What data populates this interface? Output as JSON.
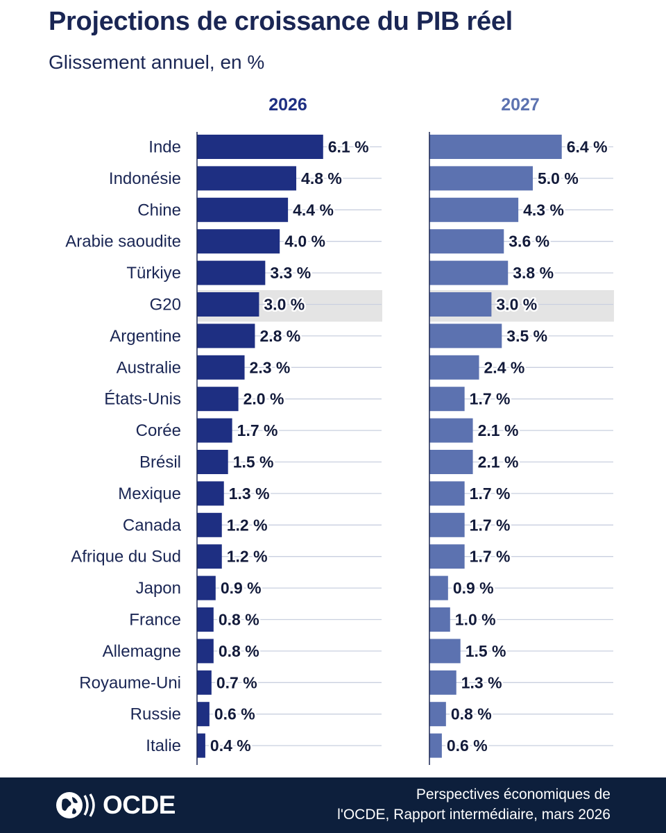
{
  "header": {
    "title": "Projections de croissance du PIB réel",
    "subtitle": "Glissement annuel, en %"
  },
  "colors": {
    "series_2026": "#1e2f82",
    "series_2027": "#5c72b0",
    "highlight_band": "#e4e4e4",
    "footer_bg": "#0d1f3c",
    "title": "#1a2654"
  },
  "chart_data": {
    "type": "bar",
    "orientation": "horizontal",
    "title": "Projections de croissance du PIB réel",
    "subtitle": "Glissement annuel, en %",
    "unit": "%",
    "highlight": "G20",
    "grid": true,
    "categories": [
      "Inde",
      "Indonésie",
      "Chine",
      "Arabie saoudite",
      "Türkiye",
      "G20",
      "Argentine",
      "Australie",
      "États-Unis",
      "Corée",
      "Brésil",
      "Mexique",
      "Canada",
      "Afrique du Sud",
      "Japon",
      "France",
      "Allemagne",
      "Royaume-Uni",
      "Russie",
      "Italie"
    ],
    "series": [
      {
        "name": "2026",
        "values": [
          6.1,
          4.8,
          4.4,
          4.0,
          3.3,
          3.0,
          2.8,
          2.3,
          2.0,
          1.7,
          1.5,
          1.3,
          1.2,
          1.2,
          0.9,
          0.8,
          0.8,
          0.7,
          0.6,
          0.4
        ],
        "labels": [
          "6.1 %",
          "4.8 %",
          "4.4 %",
          "4.0 %",
          "3.3 %",
          "3.0 %",
          "2.8 %",
          "2.3 %",
          "2.0 %",
          "1.7 %",
          "1.5 %",
          "1.3 %",
          "1.2 %",
          "1.2 %",
          "0.9 %",
          "0.8 %",
          "0.8 %",
          "0.7 %",
          "0.6 %",
          "0.4 %"
        ]
      },
      {
        "name": "2027",
        "values": [
          6.4,
          5.0,
          4.3,
          3.6,
          3.8,
          3.0,
          3.5,
          2.4,
          1.7,
          2.1,
          2.1,
          1.7,
          1.7,
          1.7,
          0.9,
          1.0,
          1.5,
          1.3,
          0.8,
          0.6
        ],
        "labels": [
          "6.4 %",
          "5.0 %",
          "4.3 %",
          "3.6 %",
          "3.8 %",
          "3.0 %",
          "3.5 %",
          "2.4 %",
          "1.7 %",
          "2.1 %",
          "2.1 %",
          "1.7 %",
          "1.7 %",
          "1.7 %",
          "0.9 %",
          "1.0 %",
          "1.5 %",
          "1.3 %",
          "0.8 %",
          "0.6 %"
        ]
      }
    ]
  },
  "footer": {
    "logo_text": "OCDE",
    "source_line1": "Perspectives économiques de",
    "source_line2": "l'OCDE, Rapport intermédiaire, mars 2026"
  }
}
